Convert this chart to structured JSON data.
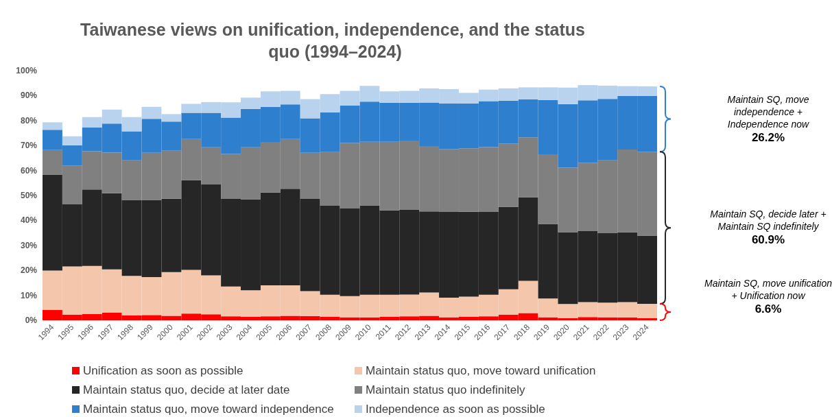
{
  "chart_data": {
    "type": "bar",
    "stacked": true,
    "title": "Taiwanese views on unification, independence, and the status quo (1994–2024)",
    "categories": [
      "1994",
      "1995",
      "1996",
      "1997",
      "1998",
      "1999",
      "2000",
      "2001",
      "2002",
      "2003",
      "2004",
      "2005",
      "2006",
      "2007",
      "2008",
      "2009",
      "2010",
      "2011",
      "2012",
      "2013",
      "2014",
      "2015",
      "2016",
      "2017",
      "2018",
      "2019",
      "2020",
      "2021",
      "2022",
      "2023",
      "2024"
    ],
    "series": [
      {
        "name": "Unification as soon as possible",
        "color": "#ff0000",
        "values": [
          4.2,
          2.3,
          2.5,
          3.1,
          2.0,
          2.1,
          1.8,
          2.7,
          2.4,
          1.6,
          1.4,
          1.6,
          1.8,
          1.7,
          1.4,
          1.2,
          1.1,
          1.4,
          1.6,
          1.8,
          1.2,
          1.4,
          1.6,
          2.3,
          2.9,
          1.2,
          0.9,
          1.3,
          1.2,
          1.1,
          0.9
        ]
      },
      {
        "name": "Maintain status quo, move toward unification",
        "color": "#f4c7ad",
        "values": [
          15.7,
          19.3,
          19.3,
          17.3,
          15.8,
          15.2,
          17.5,
          17.5,
          15.6,
          11.9,
          10.6,
          12.4,
          12.2,
          10.0,
          8.8,
          8.5,
          9.1,
          8.8,
          8.7,
          9.3,
          7.9,
          8.1,
          8.6,
          10.1,
          12.9,
          7.5,
          5.6,
          6.0,
          5.9,
          6.2,
          5.7
        ]
      },
      {
        "name": "Maintain status quo, decide at later date",
        "color": "#262626",
        "values": [
          38.5,
          24.8,
          30.6,
          30.5,
          30.4,
          30.9,
          29.4,
          35.9,
          36.4,
          35.1,
          36.5,
          37.2,
          38.7,
          36.9,
          35.7,
          35.1,
          35.8,
          33.8,
          33.9,
          32.5,
          34.3,
          34.0,
          33.2,
          33.1,
          33.5,
          29.9,
          28.8,
          28.4,
          27.8,
          27.9,
          27.3
        ]
      },
      {
        "name": "Maintain status quo indefinitely",
        "color": "#808080",
        "values": [
          9.8,
          15.6,
          15.3,
          16.3,
          15.9,
          18.9,
          19.2,
          16.5,
          14.9,
          18.0,
          20.8,
          20.2,
          19.9,
          18.5,
          21.5,
          26.2,
          25.5,
          27.5,
          27.8,
          26.2,
          25.2,
          25.4,
          26.0,
          25.3,
          24.0,
          27.9,
          25.8,
          27.4,
          29.2,
          33.2,
          33.6
        ]
      },
      {
        "name": "Maintain status quo, move toward independence",
        "color": "#2e7fce",
        "values": [
          8.1,
          8.1,
          9.5,
          11.6,
          11.6,
          13.6,
          11.7,
          10.5,
          13.8,
          14.6,
          15.4,
          14.1,
          13.9,
          13.8,
          15.9,
          15.0,
          16.1,
          15.6,
          15.1,
          17.4,
          18.2,
          18.0,
          18.4,
          17.2,
          15.2,
          21.7,
          25.5,
          25.0,
          24.6,
          21.5,
          22.4
        ]
      },
      {
        "name": "Independence as soon as possible",
        "color": "#b9d3ef",
        "values": [
          3.0,
          3.6,
          4.2,
          5.6,
          5.7,
          4.8,
          3.0,
          3.6,
          4.3,
          6.1,
          4.5,
          6.2,
          5.4,
          7.7,
          7.3,
          5.9,
          6.3,
          4.6,
          4.8,
          5.7,
          5.8,
          4.2,
          4.6,
          4.9,
          4.8,
          5.1,
          6.6,
          6.1,
          5.3,
          3.9,
          3.8
        ]
      }
    ],
    "ylim": [
      0,
      100
    ],
    "yticks": [
      {
        "value": 0,
        "label": "0%"
      },
      {
        "value": 10,
        "label": "10%"
      },
      {
        "value": 20,
        "label": "20%"
      },
      {
        "value": 30,
        "label": "30%"
      },
      {
        "value": 40,
        "label": "40%"
      },
      {
        "value": 50,
        "label": "50%"
      },
      {
        "value": 60,
        "label": "60%"
      },
      {
        "value": 70,
        "label": "70%"
      },
      {
        "value": 80,
        "label": "80%"
      },
      {
        "value": 90,
        "label": "90%"
      },
      {
        "value": 100,
        "label": "100%"
      }
    ],
    "grid": false,
    "legend": "bottom",
    "annotations": [
      "Maintain SQ, move independence + Independence now",
      "26.2%",
      "Maintain SQ, decide later + Maintain SQ indefinitely",
      "60.9%",
      "Maintain SQ, move unification + Unification now",
      "6.6%"
    ]
  }
}
